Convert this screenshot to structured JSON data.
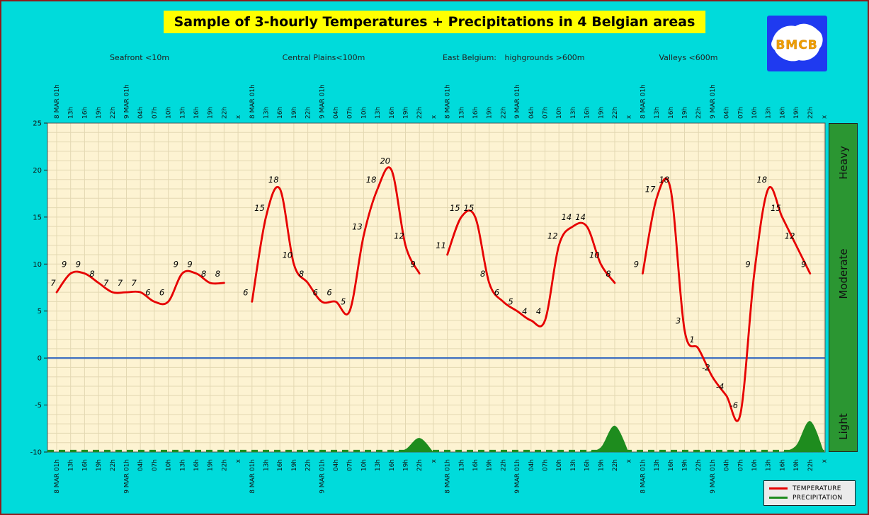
{
  "page": {
    "title": "Sample of 3-hourly Temperatures + Precipitations in 4 Belgian areas",
    "logo_text": "BMCB",
    "background_color": "#00dbdb",
    "title_bg_color": "#ffff00"
  },
  "region_headers": [
    {
      "label": "Seafront <10m"
    },
    {
      "label": "Central Plains<100m"
    },
    {
      "label": "East Belgium:"
    },
    {
      "label": "highgrounds >600m"
    },
    {
      "label": "Valleys <600m"
    }
  ],
  "intensity_scale": {
    "heavy": "Heavy",
    "moderate": "Moderate",
    "light": "Light",
    "color": "#2b9632"
  },
  "legend": {
    "temperature": "TEMPERATURE",
    "precipitation": "PRECIPITATION"
  },
  "chart_data": {
    "type": "line",
    "title": "Sample of 3-hourly Temperatures + Precipitations in 4 Belgian areas",
    "ylim": [
      -10,
      25
    ],
    "y_ticks": [
      25,
      20,
      15,
      10,
      5,
      0,
      -5,
      -10
    ],
    "time_labels": [
      "8 MAR 01h",
      "13h",
      "16h",
      "19h",
      "22h",
      "9 MAR 01h",
      "04h",
      "07h",
      "10h",
      "13h",
      "16h",
      "19h",
      "22h",
      "x"
    ],
    "grid": true,
    "plot_background": "#fdf3d2",
    "grid_color": "#e3d8b2",
    "zero_line_color": "#3f6fc0",
    "temperature": {
      "color": "#e60000",
      "series": [
        {
          "region": "Seafront <10m",
          "values": [
            7,
            9,
            9,
            8,
            7,
            7,
            7,
            6,
            6,
            9,
            9,
            8,
            8
          ]
        },
        {
          "region": "Central Plains<100m",
          "values": [
            6,
            15,
            18,
            10,
            8,
            6,
            6,
            5,
            13,
            18,
            20,
            12,
            9
          ]
        },
        {
          "region": "East Belgium highgrounds >600m",
          "values": [
            11,
            15,
            15,
            8,
            6,
            5,
            4,
            4,
            12,
            14,
            14,
            10,
            8
          ]
        },
        {
          "region": "Valleys <600m",
          "values": [
            9,
            17,
            18,
            3,
            1,
            -2,
            -4,
            -6,
            9,
            18,
            15,
            12,
            9
          ]
        }
      ]
    },
    "precipitation": {
      "color": "#1e8c1e",
      "baseline": -10,
      "series": [
        {
          "region": "Seafront <10m",
          "values": [
            0,
            0,
            0,
            0,
            0,
            0,
            0,
            0,
            0,
            0,
            0,
            0,
            0
          ]
        },
        {
          "region": "Central Plains<100m",
          "values": [
            0,
            0,
            0,
            0,
            0,
            0,
            0,
            0,
            0,
            0,
            0,
            0.3,
            1.5
          ]
        },
        {
          "region": "East Belgium highgrounds >600m",
          "values": [
            0,
            0,
            0,
            0,
            0,
            0,
            0,
            0,
            0,
            0,
            0,
            0.5,
            2.8
          ]
        },
        {
          "region": "Valleys <600m",
          "values": [
            0,
            0,
            0,
            0,
            0,
            0,
            0,
            0,
            0,
            0,
            0,
            0.7,
            3.3
          ]
        }
      ]
    }
  }
}
